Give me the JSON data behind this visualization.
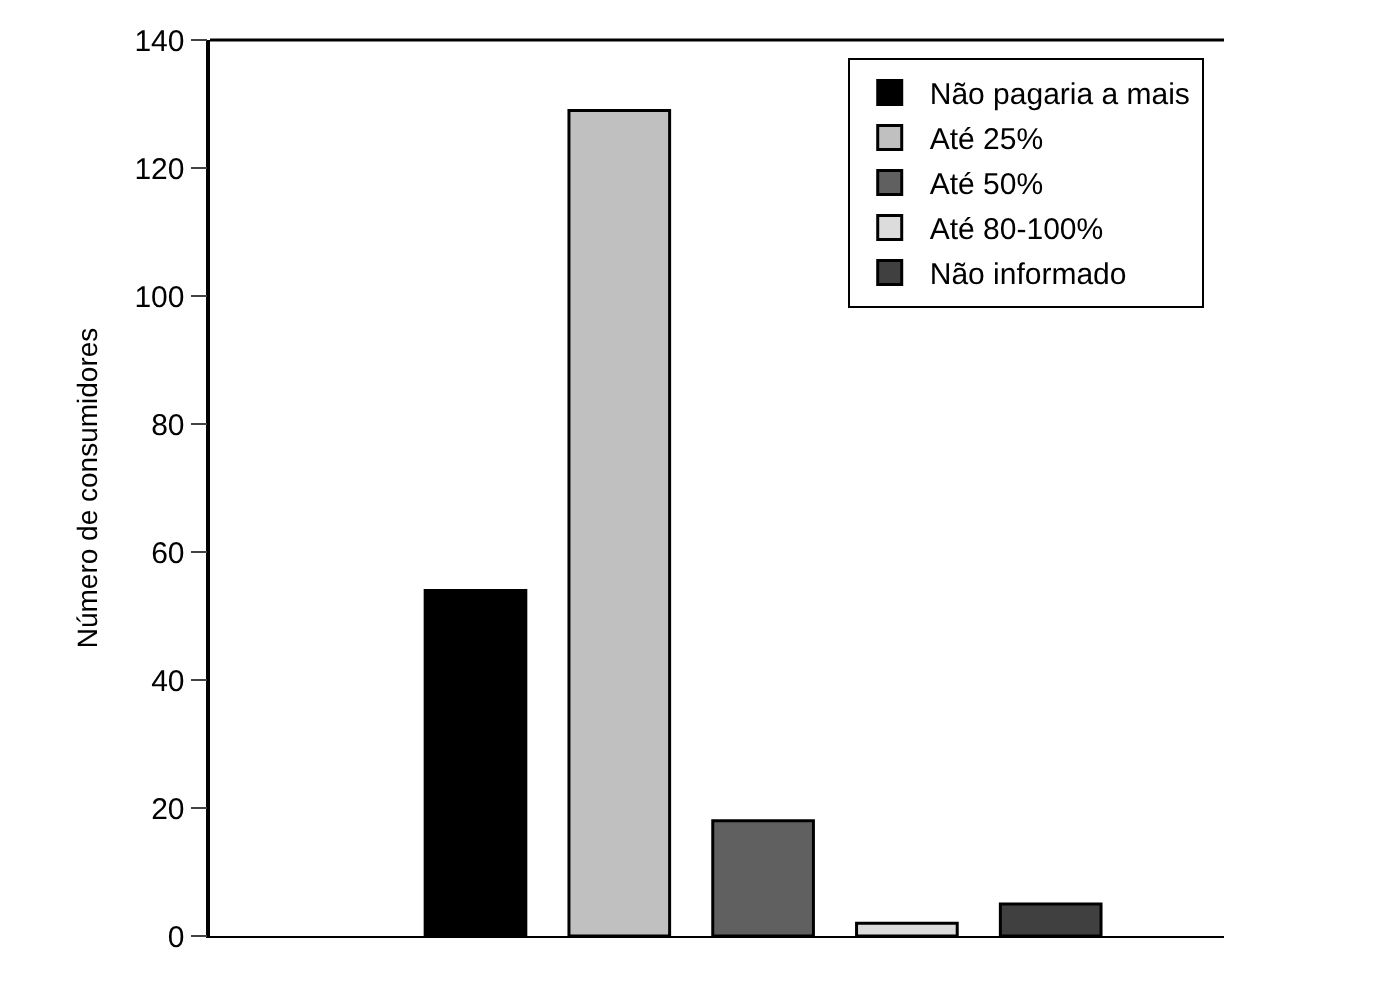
{
  "chart_data": {
    "type": "bar",
    "ylabel": "Número de consumidores",
    "categories": [
      null
    ],
    "series": [
      {
        "name": "Não pagaria a mais",
        "color": "#000000",
        "values": [
          54
        ]
      },
      {
        "name": "Até 25%",
        "color": "#c0c0c0",
        "values": [
          129
        ]
      },
      {
        "name": "Até 50%",
        "color": "#606060",
        "values": [
          18
        ]
      },
      {
        "name": "Até 80-100%",
        "color": "#dcdcdc",
        "values": [
          2
        ]
      },
      {
        "name": "Não informado",
        "color": "#404040",
        "values": [
          5
        ]
      }
    ],
    "ylim": [
      0,
      140
    ],
    "yticks": [
      0,
      20,
      40,
      60,
      80,
      100,
      120,
      140
    ],
    "legend": "top right"
  }
}
